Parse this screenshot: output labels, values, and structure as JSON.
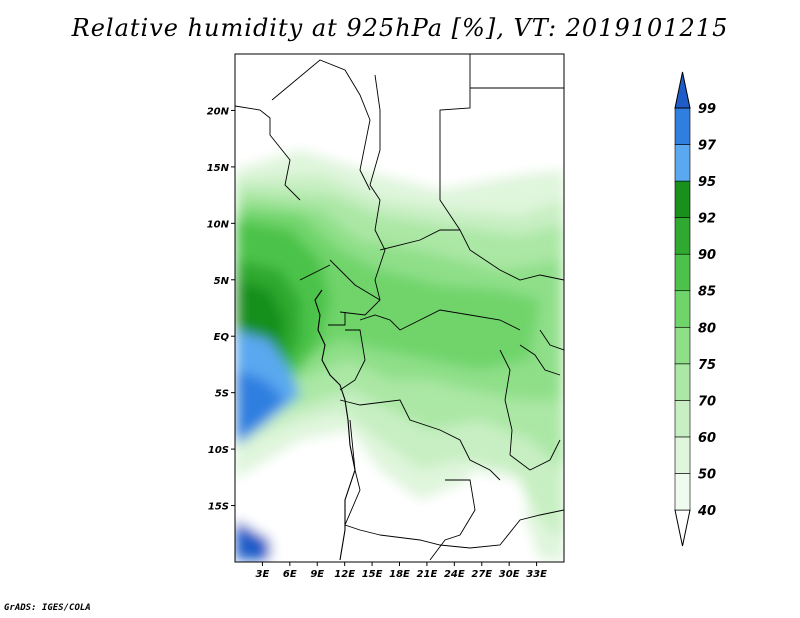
{
  "title": "Relative humidity at 925hPa [%], VT: 2019101215",
  "footer": "GrADS: IGES/COLA",
  "map": {
    "lon_range": [
      0,
      36
    ],
    "lat_range": [
      -20,
      25
    ],
    "lon_ticks": [
      {
        "value": 3,
        "label": "3E"
      },
      {
        "value": 6,
        "label": "6E"
      },
      {
        "value": 9,
        "label": "9E"
      },
      {
        "value": 12,
        "label": "12E"
      },
      {
        "value": 15,
        "label": "15E"
      },
      {
        "value": 18,
        "label": "18E"
      },
      {
        "value": 21,
        "label": "21E"
      },
      {
        "value": 24,
        "label": "24E"
      },
      {
        "value": 27,
        "label": "27E"
      },
      {
        "value": 30,
        "label": "30E"
      },
      {
        "value": 33,
        "label": "33E"
      }
    ],
    "lat_ticks": [
      {
        "value": 20,
        "label": "20N"
      },
      {
        "value": 15,
        "label": "15N"
      },
      {
        "value": 10,
        "label": "10N"
      },
      {
        "value": 5,
        "label": "5N"
      },
      {
        "value": 0,
        "label": "EQ"
      },
      {
        "value": -5,
        "label": "5S"
      },
      {
        "value": -10,
        "label": "10S"
      },
      {
        "value": -15,
        "label": "15S"
      }
    ]
  },
  "colorbar": {
    "levels": [
      {
        "label": "40",
        "color": "#f0fbef"
      },
      {
        "label": "50",
        "color": "#dff5dc"
      },
      {
        "label": "60",
        "color": "#c8efc3"
      },
      {
        "label": "70",
        "color": "#abe7a5"
      },
      {
        "label": "75",
        "color": "#8fdf89"
      },
      {
        "label": "80",
        "color": "#6fd46a"
      },
      {
        "label": "85",
        "color": "#4cc24a"
      },
      {
        "label": "90",
        "color": "#2fa92f"
      },
      {
        "label": "92",
        "color": "#19901b"
      },
      {
        "label": "95",
        "color": "#5aa8f0"
      },
      {
        "label": "97",
        "color": "#2f7fe0"
      },
      {
        "label": "99",
        "color": "#1f5cc8"
      }
    ],
    "low_end_color": "#ffffff",
    "high_end_color": "#1f5cc8"
  }
}
